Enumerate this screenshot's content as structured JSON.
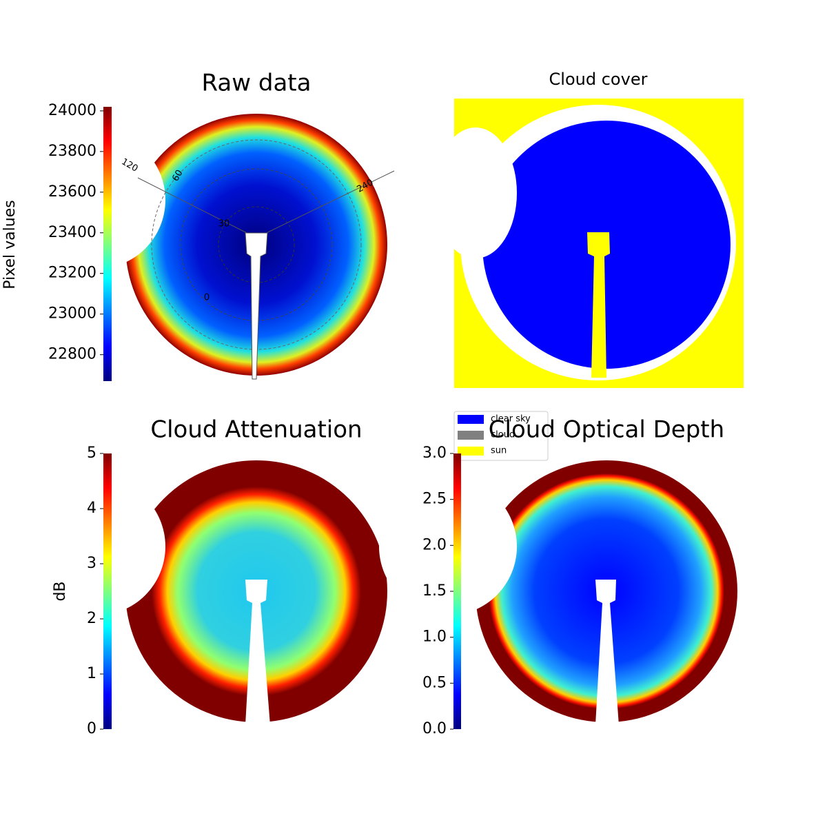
{
  "chart_data": [
    {
      "type": "colorbar-image",
      "title": "Raw data",
      "colormap": "jet",
      "ylabel": "Pixel values",
      "ylim": [
        22670,
        24020
      ],
      "yticks": [
        22800,
        23000,
        23200,
        23400,
        23600,
        23800,
        24000
      ],
      "annotations": [
        "120",
        "60",
        "240",
        "30",
        "0"
      ]
    },
    {
      "type": "mask-image",
      "title": "Cloud cover",
      "legend": [
        {
          "name": "clear sky",
          "color": "#0000ff"
        },
        {
          "name": "cloud",
          "color": "#808080"
        },
        {
          "name": "sun",
          "color": "#ffff00"
        }
      ]
    },
    {
      "type": "colorbar-image",
      "title": "Cloud Attenuation",
      "colormap": "jet",
      "ylabel": "dB",
      "ylim": [
        0,
        5
      ],
      "yticks": [
        0,
        1,
        2,
        3,
        4,
        5
      ]
    },
    {
      "type": "colorbar-image",
      "title": "Cloud Optical Depth",
      "colormap": "jet",
      "ylim": [
        0,
        3
      ],
      "yticks": [
        {
          "value": 0,
          "label": "0.0"
        },
        {
          "value": 0.5,
          "label": "0.5"
        },
        {
          "value": 1,
          "label": "1.0"
        },
        {
          "value": 1.5,
          "label": "1.5"
        },
        {
          "value": 2,
          "label": "2.0"
        },
        {
          "value": 2.5,
          "label": "2.5"
        },
        {
          "value": 3,
          "label": "3.0"
        }
      ]
    }
  ]
}
